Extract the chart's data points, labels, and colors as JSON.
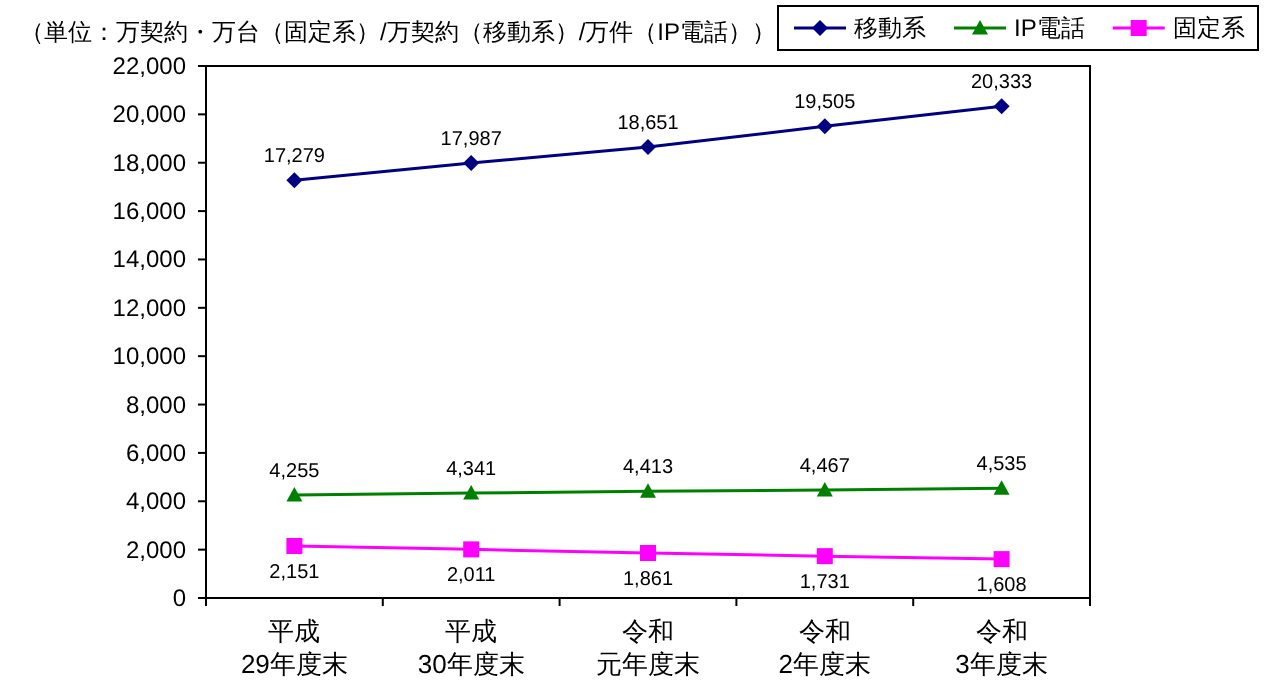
{
  "chart_data": {
    "type": "line",
    "title": "（単位：万契約・万台（固定系）/万契約（移動系）/万件（IP電話））",
    "categories": [
      "平成\n29年度末",
      "平成\n30年度末",
      "令和元年度末",
      "令和\n2年度末",
      "令和\n3年度末"
    ],
    "series": [
      {
        "name": "移動系",
        "color": "#000080",
        "marker": "diamond",
        "values": [
          17279,
          17987,
          18651,
          19505,
          20333
        ],
        "value_labels": [
          "17,279",
          "17,987",
          "18,651",
          "19,505",
          "20,333"
        ]
      },
      {
        "name": "IP電話",
        "color": "#008000",
        "marker": "triangle",
        "values": [
          4255,
          4341,
          4413,
          4467,
          4535
        ],
        "value_labels": [
          "4,255",
          "4,341",
          "4,413",
          "4,467",
          "4,535"
        ]
      },
      {
        "name": "固定系",
        "color": "#ff00ff",
        "marker": "square",
        "values": [
          2151,
          2011,
          1861,
          1731,
          1608
        ],
        "value_labels": [
          "2,151",
          "2,011",
          "1,861",
          "1,731",
          "1,608"
        ]
      }
    ],
    "ylim": [
      0,
      22000
    ],
    "yticks": [
      0,
      {
        "value": 2000,
        "label": "2,000"
      },
      {
        "value": 4000,
        "label": "4,000"
      },
      {
        "value": 6000,
        "label": "6,000"
      },
      {
        "value": 8000,
        "label": "8,000"
      },
      {
        "value": 10000,
        "label": "10,000"
      },
      {
        "value": 12000,
        "label": "12,000"
      },
      {
        "value": 14000,
        "label": "14,000"
      },
      {
        "value": 16000,
        "label": "16,000"
      },
      {
        "value": 18000,
        "label": "18,000"
      },
      {
        "value": 20000,
        "label": "20,000"
      },
      {
        "value": 22000,
        "label": "22,000"
      }
    ],
    "legend": "top right",
    "grid": false,
    "line_style": "solid"
  }
}
